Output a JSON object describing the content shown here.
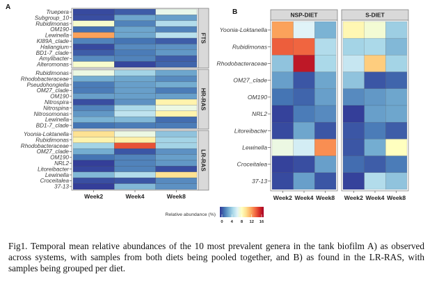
{
  "figure": {
    "caption": "Fig1. Temporal mean relative abundances of the 10 most prevalent genera in the tank biofilm A) as observed across systems, with samples from both diets being pooled together, and B) as found in the LR-RAS, with samples being grouped per diet."
  },
  "chart_data": [
    {
      "type": "heatmap",
      "panel_label": "A",
      "title": "",
      "xlabel": "",
      "ylabel": "",
      "x": [
        "Week2",
        "Week4",
        "Week8"
      ],
      "color_scale": {
        "name": "RdYlBu (reversed)",
        "range": [
          0,
          16
        ],
        "ticks": [
          "0",
          "4",
          "8",
          "12",
          "16"
        ],
        "label": "Relative abundance (%)",
        "low_color": "#313695",
        "mid_color": "#ffffbf",
        "high_color": "#a50026"
      },
      "facets": [
        {
          "name": "FTS",
          "rows": [
            "Truepera",
            "Subgroup_10",
            "Rubidimonas",
            "OM190",
            "Lewinella",
            "KI89A_clade",
            "Haliangium",
            "BD1-7_clade",
            "Amylibacter",
            "Alteromonas"
          ],
          "values": [
            [
              0.5,
              1.0,
              6.8
            ],
            [
              0.6,
              3.0,
              2.8
            ],
            [
              7.6,
              2.0,
              5.0
            ],
            [
              1.5,
              3.0,
              2.0
            ],
            [
              11.5,
              3.0,
              5.2
            ],
            [
              2.0,
              1.6,
              1.0
            ],
            [
              0.5,
              2.2,
              2.4
            ],
            [
              1.0,
              1.8,
              2.6
            ],
            [
              2.2,
              2.0,
              1.0
            ],
            [
              7.6,
              0.4,
              1.2
            ]
          ]
        },
        {
          "name": "HR-RAS",
          "rows": [
            "Rubidimonas",
            "Rhodobacteraceae",
            "Pseudohongiella",
            "OM27_clade",
            "OM190",
            "Nitrospira",
            "Nitrospina",
            "Nitrosomonas",
            "Lewinella",
            "BD1-7_clade"
          ],
          "values": [
            [
              7.0,
              4.6,
              3.0
            ],
            [
              3.2,
              3.0,
              2.2
            ],
            [
              1.8,
              2.8,
              3.2
            ],
            [
              1.8,
              2.8,
              1.8
            ],
            [
              2.8,
              2.8,
              2.8
            ],
            [
              0.6,
              2.4,
              8.6
            ],
            [
              2.0,
              4.8,
              7.0
            ],
            [
              2.6,
              5.4,
              8.6
            ],
            [
              3.4,
              3.6,
              1.4
            ],
            [
              1.6,
              1.8,
              1.8
            ]
          ]
        },
        {
          "name": "LR-RAS",
          "rows": [
            "Yoonia-Loktanella",
            "Rubidimonas",
            "Rhodobacteraceae",
            "OM27_clade",
            "OM190",
            "NRL2",
            "Litoreibacter",
            "Lewinella",
            "Croceitalea",
            "37-13"
          ],
          "values": [
            [
              9.5,
              7.0,
              4.0
            ],
            [
              8.6,
              8.8,
              4.6
            ],
            [
              4.6,
              13.5,
              4.6
            ],
            [
              3.2,
              0.8,
              2.4
            ],
            [
              1.6,
              2.0,
              2.8
            ],
            [
              0.2,
              2.0,
              2.6
            ],
            [
              0.4,
              2.0,
              0.6
            ],
            [
              3.6,
              5.0,
              9.5
            ],
            [
              0.6,
              0.8,
              2.2
            ],
            [
              0.2,
              3.6,
              2.4
            ]
          ]
        }
      ]
    },
    {
      "type": "heatmap",
      "panel_label": "B",
      "title": "",
      "xlabel": "",
      "ylabel": "",
      "x": [
        "Week2",
        "Week4",
        "Week8"
      ],
      "color_scale": {
        "name": "RdYlBu (reversed)",
        "range": [
          0,
          16
        ],
        "ticks": [
          "0",
          "4",
          "8",
          "12",
          "16"
        ],
        "label": "Relative abundance (%)"
      },
      "rows": [
        "Yoonia-Loktanella",
        "Rubidimonas",
        "Rhodobacteraceae",
        "OM27_clade",
        "OM190",
        "NRL2",
        "Litoreibacter",
        "Lewinella",
        "Croceitalea",
        "37-13"
      ],
      "facets": [
        {
          "name": "NSP-DIET",
          "values": [
            [
              11.5,
              6.4,
              3.4
            ],
            [
              13.2,
              13.0,
              5.0
            ],
            [
              4.0,
              15.2,
              4.8
            ],
            [
              2.8,
              0.8,
              3.0
            ],
            [
              1.6,
              1.2,
              2.8
            ],
            [
              0.3,
              1.8,
              2.2
            ],
            [
              0.5,
              3.0,
              0.8
            ],
            [
              7.0,
              6.0,
              12.0
            ],
            [
              0.3,
              0.6,
              2.8
            ],
            [
              0.5,
              2.8,
              0.8
            ]
          ]
        },
        {
          "name": "S-DIET",
          "values": [
            [
              8.4,
              7.4,
              4.4
            ],
            [
              4.6,
              4.8,
              3.6
            ],
            [
              5.6,
              10.2,
              4.6
            ],
            [
              4.0,
              0.8,
              1.2
            ],
            [
              2.2,
              2.6,
              3.0
            ],
            [
              0.2,
              2.8,
              3.0
            ],
            [
              0.8,
              1.8,
              1.0
            ],
            [
              0.8,
              3.2,
              8.0
            ],
            [
              1.4,
              1.0,
              1.8
            ],
            [
              0.3,
              5.0,
              4.0
            ]
          ]
        }
      ]
    }
  ]
}
